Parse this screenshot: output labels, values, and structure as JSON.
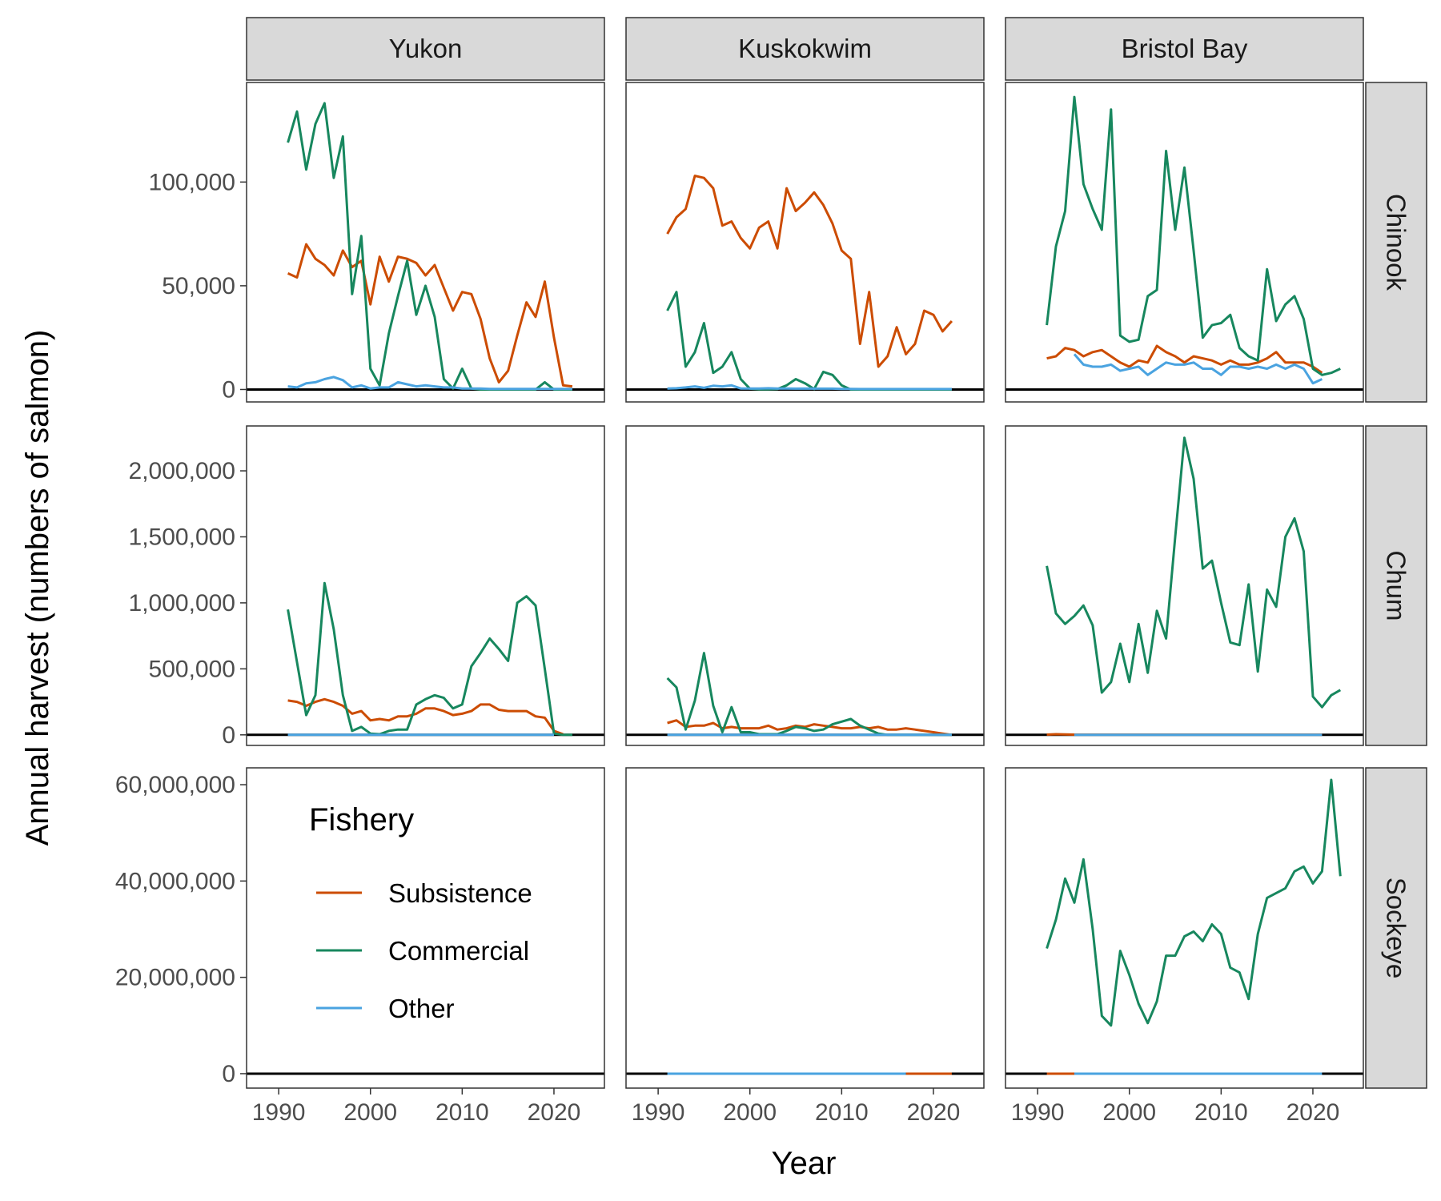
{
  "chart_data": {
    "type": "line",
    "xlabel": "Year",
    "ylabel": "Annual harvest (numbers of salmon)",
    "x_ticks": [
      1990,
      2000,
      2010,
      2020
    ],
    "xlim": [
      1986.5,
      2025.5
    ],
    "grid": false,
    "legend": {
      "title": "Fishery",
      "placement": "inside bottom-left panel"
    },
    "columns": [
      "Yukon",
      "Kuskokwim",
      "Bristol Bay"
    ],
    "rows": [
      {
        "label": "Chinook",
        "ylim": [
          -6000,
          148000
        ],
        "y_ticks": [
          0,
          50000,
          100000
        ],
        "y_tick_labels": [
          "0",
          "50,000",
          "100,000"
        ]
      },
      {
        "label": "Chum",
        "ylim": [
          -80000,
          2340000
        ],
        "y_ticks": [
          0,
          500000,
          1000000,
          1500000,
          2000000
        ],
        "y_tick_labels": [
          "0",
          "500,000",
          "1,000,000",
          "1,500,000",
          "2,000,000"
        ]
      },
      {
        "label": "Sockeye",
        "ylim": [
          -3000000,
          63500000
        ],
        "y_ticks": [
          0,
          20000000,
          40000000,
          60000000
        ],
        "y_tick_labels": [
          "0",
          "20,000,000",
          "40,000,000",
          "60,000,000"
        ]
      }
    ],
    "series_styles": [
      {
        "name": "Subsistence",
        "color": "#cc4c02"
      },
      {
        "name": "Commercial",
        "color": "#17875e"
      },
      {
        "name": "Other",
        "color": "#4aa3e0"
      }
    ],
    "panels": [
      {
        "column": "Yukon",
        "row": "Chinook",
        "series": [
          {
            "name": "Subsistence",
            "x_start": 1991,
            "values": [
              56000,
              54000,
              70000,
              63000,
              60000,
              55000,
              67000,
              59000,
              62000,
              41000,
              64000,
              52000,
              64000,
              63000,
              61000,
              55000,
              60000,
              49000,
              38000,
              47000,
              46000,
              34000,
              15000,
              3500,
              9000,
              26000,
              42000,
              35000,
              52000,
              25000,
              2000,
              1500
            ]
          },
          {
            "name": "Commercial",
            "x_start": 1991,
            "values": [
              119000,
              134000,
              106000,
              128000,
              138000,
              102000,
              122000,
              46000,
              74000,
              10000,
              2000,
              27000,
              45000,
              62000,
              36000,
              50000,
              35000,
              5000,
              500,
              10000,
              500,
              0,
              0,
              0,
              0,
              0,
              0,
              0,
              3500,
              0,
              0,
              0
            ]
          },
          {
            "name": "Other",
            "x_start": 1991,
            "values": [
              1500,
              1000,
              3000,
              3500,
              5000,
              6000,
              4500,
              1000,
              2000,
              500,
              1000,
              1000,
              3500,
              2500,
              1500,
              2000,
              1500,
              1000,
              1000,
              500,
              500,
              500,
              300,
              300,
              300,
              300,
              300,
              300,
              300,
              300,
              300,
              300
            ]
          }
        ]
      },
      {
        "column": "Kuskokwim",
        "row": "Chinook",
        "series": [
          {
            "name": "Subsistence",
            "x_start": 1991,
            "values": [
              75000,
              83000,
              87000,
              103000,
              102000,
              97000,
              79000,
              81000,
              73000,
              68000,
              78000,
              81000,
              68000,
              97000,
              86000,
              90000,
              95000,
              89000,
              80000,
              67000,
              63000,
              22000,
              47000,
              11000,
              16000,
              30000,
              17000,
              22000,
              38000,
              36000,
              28000,
              33000
            ]
          },
          {
            "name": "Commercial",
            "x_start": 1991,
            "values": [
              38000,
              47000,
              11000,
              18000,
              32000,
              8000,
              11000,
              18000,
              5000,
              400,
              100,
              100,
              200,
              2000,
              5000,
              3000,
              200,
              8500,
              7000,
              2000,
              0,
              0,
              0,
              0,
              0,
              0,
              0,
              0,
              0,
              0,
              0,
              0
            ]
          },
          {
            "name": "Other",
            "x_start": 1991,
            "values": [
              500,
              600,
              1000,
              1500,
              800,
              1800,
              1500,
              2000,
              500,
              500,
              500,
              600,
              500,
              500,
              400,
              500,
              400,
              400,
              400,
              300,
              300,
              200,
              200,
              200,
              200,
              200,
              200,
              200,
              200,
              200,
              200,
              200
            ]
          }
        ]
      },
      {
        "column": "Bristol Bay",
        "row": "Chinook",
        "series": [
          {
            "name": "Subsistence",
            "x_start": 1991,
            "values": [
              15000,
              16000,
              20000,
              19000,
              16000,
              18000,
              19000,
              16000,
              13000,
              11000,
              14000,
              13000,
              21000,
              18000,
              16000,
              13000,
              16000,
              15000,
              14000,
              12000,
              14000,
              12000,
              12000,
              13000,
              15000,
              18000,
              13000,
              13000,
              13000,
              11000,
              8000
            ]
          },
          {
            "name": "Commercial",
            "x_start": 1991,
            "values": [
              31000,
              69000,
              86000,
              141000,
              99000,
              87000,
              77000,
              135000,
              26000,
              23000,
              24000,
              45000,
              48000,
              115000,
              77000,
              107000,
              67000,
              25000,
              31000,
              32000,
              36000,
              20000,
              16000,
              14000,
              58000,
              33000,
              41000,
              45000,
              34000,
              10000,
              7000,
              8000,
              10000
            ]
          },
          {
            "name": "Other",
            "x_start": 1994,
            "values": [
              17000,
              12000,
              11000,
              11000,
              12000,
              9000,
              10000,
              11000,
              7000,
              10000,
              13000,
              12000,
              12000,
              13000,
              10000,
              10000,
              7000,
              11000,
              11000,
              10000,
              11000,
              10000,
              12000,
              10000,
              12000,
              10000,
              3000,
              5000
            ]
          }
        ]
      },
      {
        "column": "Yukon",
        "row": "Chum",
        "series": [
          {
            "name": "Subsistence",
            "x_start": 1991,
            "values": [
              260000,
              250000,
              220000,
              250000,
              270000,
              250000,
              220000,
              160000,
              180000,
              110000,
              120000,
              110000,
              140000,
              140000,
              160000,
              200000,
              200000,
              180000,
              150000,
              160000,
              180000,
              230000,
              230000,
              190000,
              180000,
              180000,
              180000,
              140000,
              130000,
              30000,
              5000
            ]
          },
          {
            "name": "Commercial",
            "x_start": 1991,
            "values": [
              950000,
              550000,
              150000,
              300000,
              1150000,
              800000,
              300000,
              30000,
              60000,
              10000,
              5000,
              30000,
              40000,
              40000,
              230000,
              270000,
              300000,
              280000,
              200000,
              230000,
              520000,
              620000,
              730000,
              650000,
              560000,
              1000000,
              1050000,
              980000,
              500000,
              10000,
              0,
              0
            ]
          },
          {
            "name": "Other",
            "x_start": 1991,
            "values": [
              0,
              0,
              0,
              0,
              0,
              0,
              0,
              0,
              0,
              0,
              0,
              0,
              0,
              0,
              0,
              0,
              0,
              0,
              0,
              0,
              0,
              0,
              0,
              0,
              0,
              0,
              0,
              0,
              0,
              0
            ]
          }
        ]
      },
      {
        "column": "Kuskokwim",
        "row": "Chum",
        "series": [
          {
            "name": "Subsistence",
            "x_start": 1991,
            "values": [
              90000,
              110000,
              60000,
              70000,
              70000,
              90000,
              50000,
              60000,
              50000,
              50000,
              50000,
              70000,
              40000,
              50000,
              70000,
              60000,
              80000,
              70000,
              60000,
              50000,
              50000,
              60000,
              50000,
              60000,
              40000,
              40000,
              50000,
              40000,
              30000,
              20000,
              10000,
              0
            ]
          },
          {
            "name": "Commercial",
            "x_start": 1991,
            "values": [
              430000,
              360000,
              40000,
              260000,
              620000,
              220000,
              20000,
              210000,
              20000,
              20000,
              5000,
              5000,
              5000,
              30000,
              60000,
              50000,
              30000,
              40000,
              80000,
              100000,
              120000,
              70000,
              40000,
              10000,
              0,
              0,
              0,
              0,
              0,
              0,
              0,
              0
            ]
          },
          {
            "name": "Other",
            "x_start": 1991,
            "values": [
              0,
              0,
              0,
              0,
              0,
              0,
              0,
              0,
              0,
              0,
              0,
              0,
              0,
              0,
              0,
              0,
              0,
              0,
              0,
              0,
              0,
              0,
              0,
              0,
              0,
              0,
              0,
              0,
              0,
              0,
              0,
              0
            ]
          }
        ]
      },
      {
        "column": "Bristol Bay",
        "row": "Chum",
        "series": [
          {
            "name": "Subsistence",
            "x_start": 1991,
            "values": [
              2000,
              5000,
              3000,
              2000,
              2000,
              2000,
              2000,
              2000,
              2000,
              2000,
              2000,
              2000,
              2000,
              2000,
              2000,
              2000,
              2000,
              2000,
              2000,
              2000,
              2000,
              2000,
              2000,
              2000,
              2000,
              2000,
              2000,
              2000,
              2000,
              2000,
              2000
            ]
          },
          {
            "name": "Commercial",
            "x_start": 1991,
            "values": [
              1280000,
              920000,
              840000,
              900000,
              980000,
              830000,
              320000,
              400000,
              690000,
              400000,
              840000,
              470000,
              940000,
              730000,
              1500000,
              2250000,
              1940000,
              1260000,
              1320000,
              1000000,
              700000,
              680000,
              1140000,
              480000,
              1100000,
              970000,
              1500000,
              1640000,
              1390000,
              290000,
              210000,
              300000,
              340000
            ]
          },
          {
            "name": "Other",
            "x_start": 1994,
            "values": [
              0,
              0,
              0,
              0,
              0,
              0,
              0,
              0,
              0,
              0,
              0,
              0,
              0,
              0,
              0,
              0,
              0,
              0,
              0,
              0,
              0,
              0,
              0,
              0,
              0,
              0,
              0,
              0
            ]
          }
        ]
      },
      {
        "column": "Yukon",
        "row": "Sockeye",
        "series": []
      },
      {
        "column": "Kuskokwim",
        "row": "Sockeye",
        "series": [
          {
            "name": "Subsistence",
            "x_start": 2017,
            "values": [
              0,
              0,
              0,
              0,
              0,
              0
            ]
          },
          {
            "name": "Other",
            "x_start": 1991,
            "values": [
              0,
              0,
              0,
              0,
              0,
              0,
              0,
              0,
              0,
              0,
              0,
              0,
              0,
              0,
              0,
              0,
              0,
              0,
              0,
              0,
              0,
              0,
              0,
              0,
              0,
              0,
              0
            ]
          }
        ]
      },
      {
        "column": "Bristol Bay",
        "row": "Sockeye",
        "series": [
          {
            "name": "Subsistence",
            "x_start": 1991,
            "values": [
              0,
              0,
              0,
              0
            ]
          },
          {
            "name": "Commercial",
            "x_start": 1991,
            "values": [
              26000000,
              32000000,
              40500000,
              35500000,
              44500000,
              30000000,
              12000000,
              10000000,
              25500000,
              20500000,
              14500000,
              10500000,
              15000000,
              24500000,
              24500000,
              28500000,
              29500000,
              27500000,
              31000000,
              29000000,
              22000000,
              21000000,
              15500000,
              29000000,
              36500000,
              37500000,
              38500000,
              42000000,
              43000000,
              39500000,
              42000000,
              61000000,
              41000000
            ]
          },
          {
            "name": "Other",
            "x_start": 1994,
            "values": [
              0,
              0,
              0,
              0,
              0,
              0,
              0,
              0,
              0,
              0,
              0,
              0,
              0,
              0,
              0,
              0,
              0,
              0,
              0,
              0,
              0,
              0,
              0,
              0,
              0,
              0,
              0,
              0
            ]
          }
        ]
      }
    ]
  }
}
